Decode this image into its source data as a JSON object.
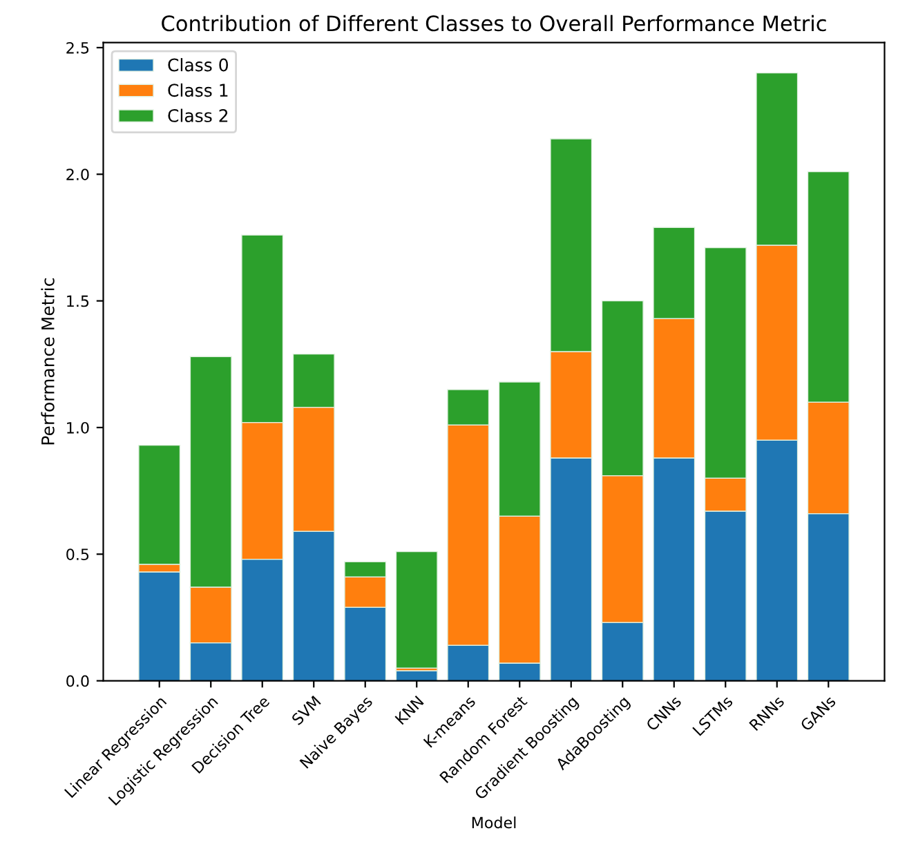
{
  "chart_data": {
    "type": "bar",
    "title": "Contribution of Different Classes to Overall Performance Metric",
    "xlabel": "Model",
    "ylabel": "Performance Metric",
    "categories": [
      "Linear Regression",
      "Logistic Regression",
      "Decision Tree",
      "SVM",
      "Naive Bayes",
      "KNN",
      "K-means",
      "Random Forest",
      "Gradient Boosting",
      "AdaBoosting",
      "CNNs",
      "LSTMs",
      "RNNs",
      "GANs"
    ],
    "stacked": true,
    "series": [
      {
        "name": "Class 0",
        "color": "#1f77b4",
        "values": [
          0.43,
          0.15,
          0.48,
          0.59,
          0.29,
          0.04,
          0.14,
          0.07,
          0.88,
          0.23,
          0.88,
          0.67,
          0.95,
          0.66
        ]
      },
      {
        "name": "Class 1",
        "color": "#ff7f0e",
        "values": [
          0.03,
          0.22,
          0.54,
          0.49,
          0.12,
          0.01,
          0.87,
          0.58,
          0.42,
          0.58,
          0.55,
          0.13,
          0.77,
          0.44
        ]
      },
      {
        "name": "Class 2",
        "color": "#2ca02c",
        "values": [
          0.47,
          0.91,
          0.74,
          0.21,
          0.06,
          0.46,
          0.14,
          0.53,
          0.84,
          0.69,
          0.36,
          0.91,
          0.68,
          0.91
        ]
      }
    ],
    "ylim": [
      0,
      2.52
    ],
    "yticks": [
      {
        "value": 0,
        "label": "0.0"
      },
      {
        "value": 0.5,
        "label": "0.5"
      },
      {
        "value": 1,
        "label": "1.0"
      },
      {
        "value": 1.5,
        "label": "1.5"
      },
      {
        "value": 2,
        "label": "2.0"
      },
      {
        "value": 2.5,
        "label": "2.5"
      }
    ],
    "grid": false,
    "legend": "top left"
  }
}
